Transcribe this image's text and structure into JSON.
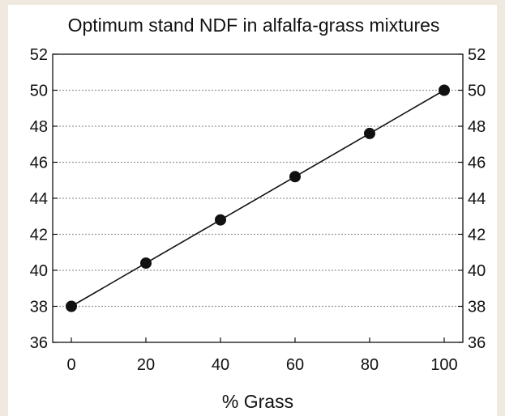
{
  "colors": {
    "background": "#efe9df",
    "panel": "#ffffff",
    "ink": "#111111",
    "grid": "#9a9a9a"
  },
  "chart_data": {
    "type": "line",
    "title": "Optimum stand NDF in alfalfa-grass mixtures",
    "xlabel": "% Grass",
    "ylabel": "",
    "x": [
      0,
      20,
      40,
      60,
      80,
      100
    ],
    "series": [
      {
        "values": [
          38.0,
          40.4,
          42.8,
          45.2,
          47.6,
          50.0
        ]
      }
    ],
    "xlim": [
      -5,
      105
    ],
    "ylim": [
      36,
      52
    ],
    "xticks": [
      "0",
      "20",
      "40",
      "60",
      "80",
      "100"
    ],
    "yticks": [
      "36",
      "38",
      "40",
      "42",
      "44",
      "46",
      "48",
      "50",
      "52"
    ],
    "grid": "horizontal dotted",
    "marker": "filled circle",
    "right_axis_labels": true
  }
}
